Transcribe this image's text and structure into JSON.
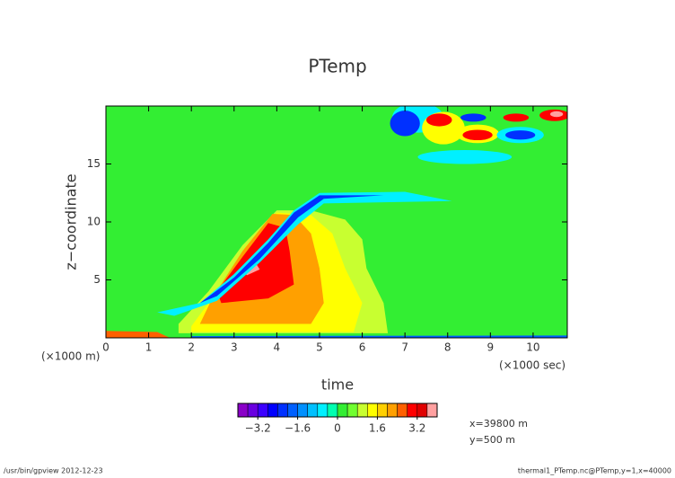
{
  "chart_data": {
    "type": "contour",
    "title": "PTemp",
    "x_label": "time",
    "y_label": "z−coordinate",
    "x_note": "(×1000 m)",
    "x_unit": "(×1000 sec)",
    "info": [
      "x=39800 m",
      "y=500 m"
    ],
    "footer_left": "/usr/bin/gpview   2012-12-23",
    "footer_right": "thermal1_PTemp.nc@PTemp,y=1,x=40000",
    "xlim": [
      0,
      10.8
    ],
    "ylim": [
      0,
      20
    ],
    "xticks": [
      0,
      1,
      2,
      3,
      4,
      5,
      6,
      7,
      8,
      9,
      10
    ],
    "yticks": [
      5,
      10,
      15
    ],
    "colorbar": {
      "levels": [
        -4,
        -3.6,
        -3.2,
        -2.8,
        -2.4,
        -2,
        -1.6,
        -1.2,
        -0.8,
        -0.4,
        0,
        0.4,
        0.8,
        1.2,
        1.6,
        2,
        2.4,
        2.8,
        3.2,
        3.6,
        4
      ],
      "colors": [
        "#8a00c8",
        "#6a00e0",
        "#3c00ff",
        "#0000ff",
        "#0030ff",
        "#0060ff",
        "#0090ff",
        "#00c0ff",
        "#00f0ff",
        "#00ffb0",
        "#33ee33",
        "#70ff30",
        "#c8ff30",
        "#ffff00",
        "#ffd000",
        "#ffa000",
        "#ff6000",
        "#ff0000",
        "#e00000",
        "#ffa0a0"
      ],
      "ticks": [
        {
          "value": -3.2,
          "label": "−3.2"
        },
        {
          "value": -1.6,
          "label": "−1.6"
        },
        0,
        1.6,
        3.2
      ]
    },
    "background_level": 10,
    "regions": [
      {
        "level": 12,
        "points": [
          [
            1.7,
            0.4
          ],
          [
            6.6,
            0.4
          ],
          [
            6.5,
            3
          ],
          [
            6.1,
            6
          ],
          [
            6,
            8.5
          ],
          [
            5.6,
            10.2
          ],
          [
            4.8,
            11
          ],
          [
            4,
            11
          ],
          [
            3.2,
            8
          ],
          [
            2.4,
            4
          ],
          [
            1.7,
            1.2
          ]
        ]
      },
      {
        "level": 13,
        "points": [
          [
            2,
            0.5
          ],
          [
            5.8,
            0.5
          ],
          [
            6,
            3
          ],
          [
            5.6,
            6
          ],
          [
            5.3,
            9
          ],
          [
            4.8,
            10.6
          ],
          [
            4,
            10.8
          ],
          [
            3.3,
            8
          ],
          [
            2.5,
            3.5
          ],
          [
            2,
            1
          ]
        ]
      },
      {
        "level": 15,
        "points": [
          [
            2.2,
            1.2
          ],
          [
            4.8,
            1.2
          ],
          [
            5.1,
            3
          ],
          [
            5,
            6
          ],
          [
            4.8,
            9
          ],
          [
            4.4,
            10.6
          ],
          [
            3.9,
            10.7
          ],
          [
            3.2,
            7.5
          ],
          [
            2.5,
            3.5
          ]
        ]
      },
      {
        "level": 17,
        "points": [
          [
            2.7,
            3
          ],
          [
            3.8,
            3.4
          ],
          [
            4.4,
            4.6
          ],
          [
            4.3,
            7.5
          ],
          [
            4.2,
            9.5
          ],
          [
            3.8,
            9.9
          ],
          [
            3.2,
            7
          ],
          [
            2.6,
            4
          ]
        ]
      },
      {
        "level": 19,
        "points": [
          [
            3.3,
            5.4
          ],
          [
            3.6,
            5.9
          ],
          [
            3.5,
            6.5
          ],
          [
            3.2,
            5.8
          ]
        ]
      },
      {
        "level": 8,
        "points": [
          [
            1.2,
            2.2
          ],
          [
            2.2,
            3
          ],
          [
            3,
            5.5
          ],
          [
            3.8,
            8.5
          ],
          [
            4.4,
            11
          ],
          [
            5,
            12.5
          ],
          [
            7,
            12.6
          ],
          [
            8.1,
            11.8
          ],
          [
            6.5,
            11.7
          ],
          [
            5.1,
            11.6
          ],
          [
            4.5,
            9.8
          ],
          [
            3.6,
            6.5
          ],
          [
            2.6,
            3.2
          ],
          [
            1.6,
            1.9
          ]
        ]
      },
      {
        "level": 4,
        "points": [
          [
            2.2,
            3
          ],
          [
            3,
            5.2
          ],
          [
            3.8,
            8.2
          ],
          [
            4.4,
            10.8
          ],
          [
            5,
            12.3
          ],
          [
            6.5,
            12.3
          ],
          [
            5.1,
            12
          ],
          [
            4.5,
            10.4
          ],
          [
            3.6,
            6.8
          ],
          [
            2.6,
            3.6
          ]
        ]
      },
      {
        "level": 8,
        "ellipse": [
          8.4,
          15.6,
          1.1,
          0.6
        ]
      },
      {
        "level": 8,
        "ellipse": [
          7.3,
          19,
          0.6,
          1.3
        ]
      },
      {
        "level": 4,
        "ellipse": [
          7.0,
          18.5,
          0.35,
          1.1
        ]
      },
      {
        "level": 13,
        "ellipse": [
          7.9,
          18.1,
          0.5,
          1.4
        ]
      },
      {
        "level": 17,
        "ellipse": [
          7.8,
          18.8,
          0.3,
          0.55
        ]
      },
      {
        "level": 13,
        "ellipse": [
          8.7,
          17.6,
          0.5,
          0.8
        ]
      },
      {
        "level": 17,
        "ellipse": [
          8.7,
          17.5,
          0.35,
          0.45
        ]
      },
      {
        "level": 4,
        "ellipse": [
          8.6,
          19,
          0.3,
          0.35
        ]
      },
      {
        "level": 8,
        "ellipse": [
          9.7,
          17.5,
          0.55,
          0.7
        ]
      },
      {
        "level": 4,
        "ellipse": [
          9.7,
          17.5,
          0.35,
          0.4
        ]
      },
      {
        "level": 17,
        "ellipse": [
          9.6,
          19,
          0.3,
          0.35
        ]
      },
      {
        "level": 17,
        "ellipse": [
          10.5,
          19.2,
          0.35,
          0.5
        ]
      },
      {
        "level": 19,
        "ellipse": [
          10.55,
          19.3,
          0.15,
          0.25
        ]
      },
      {
        "level": 16,
        "points": [
          [
            0,
            0
          ],
          [
            1.5,
            0
          ],
          [
            1.2,
            0.5
          ],
          [
            0,
            0.6
          ]
        ]
      },
      {
        "level": 5,
        "points": [
          [
            2,
            0
          ],
          [
            10.8,
            0
          ],
          [
            10.8,
            0.2
          ],
          [
            2,
            0.15
          ]
        ]
      }
    ]
  }
}
